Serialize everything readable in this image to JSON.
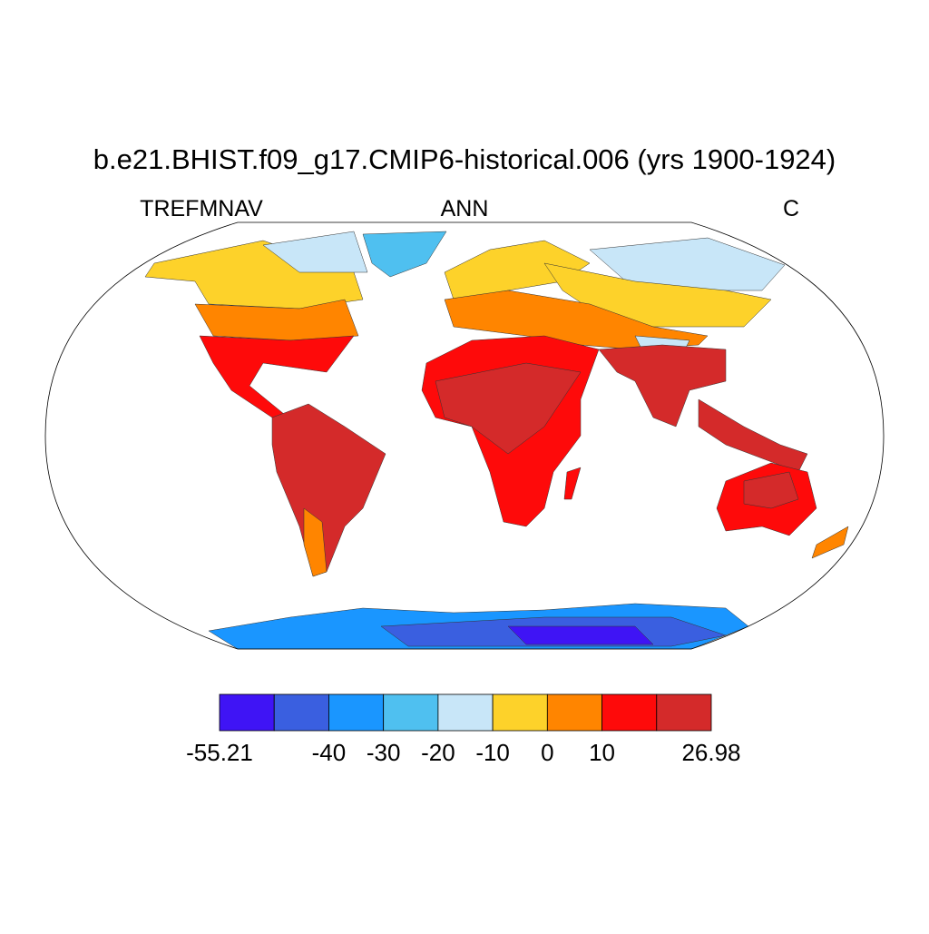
{
  "chart_data": {
    "type": "map",
    "title": "b.e21.BHIST.f09_g17.CMIP6-historical.006 (yrs 1900-1924)",
    "left_label": "TREFMNAV",
    "center_label": "ANN",
    "right_label": "C",
    "colors": [
      "#3f14f5",
      "#3a5fe0",
      "#1a96ff",
      "#4fc0f0",
      "#c8e6f8",
      "#fdd22a",
      "#ff8500",
      "#fe0a0a",
      "#d42a2a"
    ],
    "levels": [
      -55.21,
      null,
      -40,
      -30,
      -20,
      -10,
      0,
      10,
      null,
      26.98
    ]
  }
}
